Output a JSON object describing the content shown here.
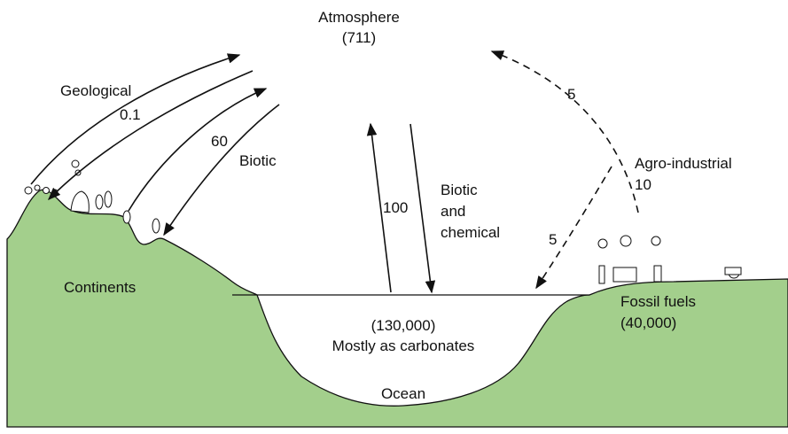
{
  "atmosphere": {
    "label": "Atmosphere",
    "amount": "(711)"
  },
  "geological": {
    "label": "Geological",
    "flux": "0.1"
  },
  "biotic": {
    "label": "Biotic",
    "flux": "60"
  },
  "ocean_exchange": {
    "flux": "100",
    "label_lines": [
      "Biotic",
      "and",
      "chemical"
    ]
  },
  "agro_industrial": {
    "label": "Agro-industrial",
    "flux_up": "5",
    "flux_total": "10",
    "flux_down": "5"
  },
  "continents": {
    "label": "Continents"
  },
  "ocean": {
    "amount": "(130,000)",
    "note": "Mostly as carbonates",
    "label": "Ocean"
  },
  "fossil_fuels": {
    "label": "Fossil fuels",
    "amount": "(40,000)"
  }
}
